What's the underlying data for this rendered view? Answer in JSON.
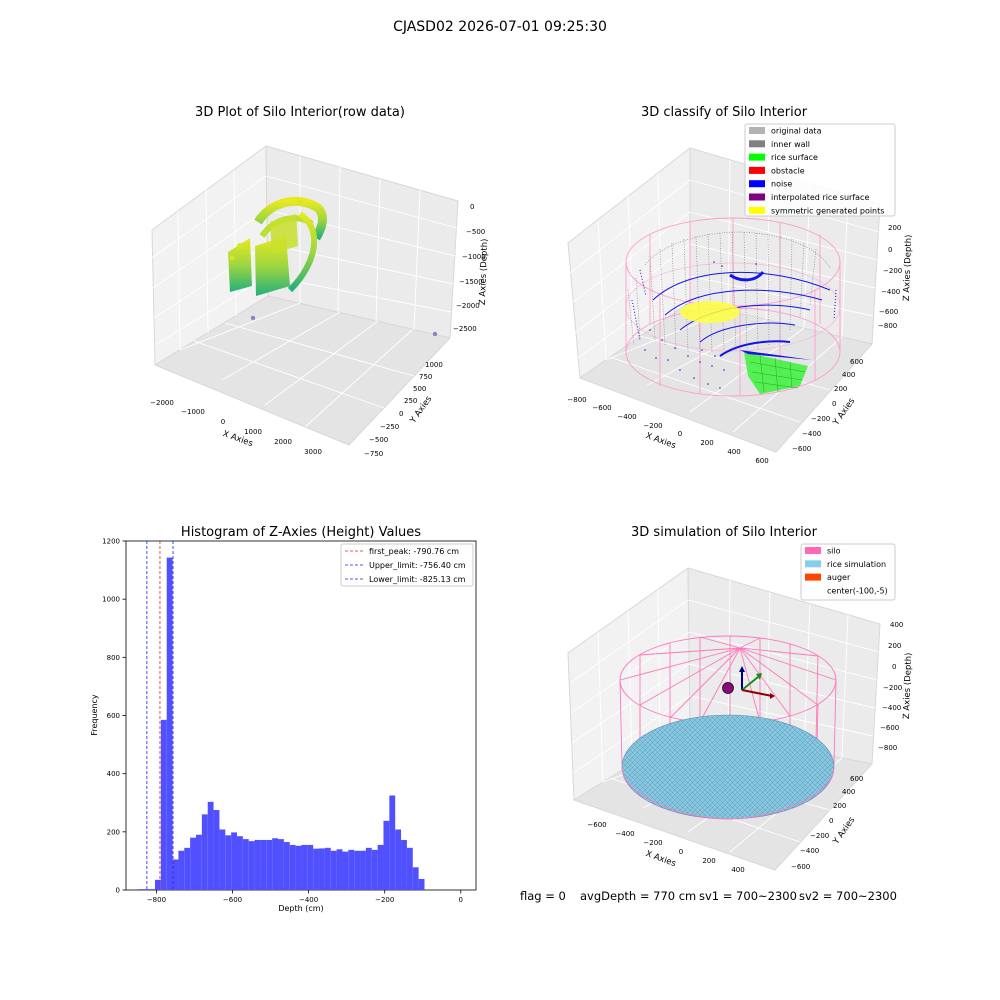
{
  "figure": {
    "suptitle": "CJASD02 2026-07-01 09:25:30"
  },
  "chart_data": [
    {
      "type": "scatter",
      "projection": "3d",
      "title": "3D Plot of Silo Interior(row data)",
      "xlabel": "X Axies",
      "ylabel": "Y Axies",
      "zlabel": "Z Axies (Depth)",
      "x_ticks": [
        "−2000",
        "−1000",
        "0",
        "1000",
        "2000",
        "3000"
      ],
      "y_ticks": [
        "−750",
        "−500",
        "−250",
        "0",
        "250",
        "500",
        "750",
        "1000"
      ],
      "z_ticks": [
        "0",
        "−500",
        "−1000",
        "−1500",
        "−2000",
        "−2500"
      ],
      "colormap": "viridis",
      "grid": true
    },
    {
      "type": "scatter",
      "projection": "3d",
      "title": "3D classify of Silo Interior",
      "xlabel": "X Axies",
      "ylabel": "Y Axies",
      "zlabel": "Z Axies (Depth)",
      "x_ticks": [
        "−800",
        "−600",
        "−400",
        "−200",
        "0",
        "200",
        "400",
        "600"
      ],
      "y_ticks": [
        "−600",
        "−400",
        "−200",
        "0",
        "200",
        "400",
        "600"
      ],
      "z_ticks": [
        "200",
        "0",
        "−200",
        "−400",
        "−600",
        "−800"
      ],
      "legend_position": "top-right",
      "legend": [
        {
          "label": "original data",
          "color": "#b3b3b3"
        },
        {
          "label": "inner wall",
          "color": "#808080"
        },
        {
          "label": "rice surface",
          "color": "#00ff00"
        },
        {
          "label": "obstacle",
          "color": "#ff0000"
        },
        {
          "label": "noise",
          "color": "#0000ff"
        },
        {
          "label": "interpolated rice surface",
          "color": "#800080"
        },
        {
          "label": "symmetric generated points",
          "color": "#ffff00"
        }
      ],
      "grid": true
    },
    {
      "type": "bar",
      "title": "Histogram of Z-Axies (Height) Values",
      "xlabel": "Depth (cm)",
      "ylabel": "Frequency",
      "xlim": [
        -880,
        40
      ],
      "ylim": [
        0,
        1200
      ],
      "x_ticks": [
        {
          "value": -800,
          "label": "−800"
        },
        {
          "value": -600,
          "label": "−600"
        },
        {
          "value": -400,
          "label": "−400"
        },
        {
          "value": -200,
          "label": "−200"
        },
        {
          "value": 0,
          "label": "0"
        }
      ],
      "y_ticks": [
        {
          "value": 0,
          "label": "0"
        },
        {
          "value": 200,
          "label": "200"
        },
        {
          "value": 400,
          "label": "400"
        },
        {
          "value": 600,
          "label": "600"
        },
        {
          "value": 800,
          "label": "800"
        },
        {
          "value": 1000,
          "label": "1000"
        },
        {
          "value": 1200,
          "label": "1200"
        }
      ],
      "bar_color": "#5050ff",
      "bin_start": -850,
      "bin_width": 15.4,
      "counts": [
        3,
        3,
        3,
        35,
        585,
        1143,
        105,
        135,
        145,
        180,
        190,
        260,
        303,
        275,
        208,
        188,
        198,
        185,
        175,
        168,
        172,
        172,
        172,
        178,
        175,
        165,
        155,
        152,
        155,
        155,
        142,
        143,
        145,
        135,
        140,
        132,
        138,
        135,
        135,
        145,
        138,
        155,
        238,
        325,
        208,
        172,
        145,
        78,
        38
      ],
      "vlines": [
        {
          "value": -790.76,
          "color": "#e02020",
          "label": "first_peak: -790.76 cm"
        },
        {
          "value": -756.4,
          "color": "#2020e0",
          "label": "Upper_limit: -756.40 cm"
        },
        {
          "value": -825.13,
          "color": "#2020e0",
          "label": "Lower_limit: -825.13 cm"
        }
      ],
      "legend_position": "top-right"
    },
    {
      "type": "scatter",
      "projection": "3d",
      "title": "3D simulation of Silo Interior",
      "xlabel": "X Axies",
      "ylabel": "Y Axies",
      "zlabel": "Z Axies (Depth)",
      "x_ticks": [
        "−600",
        "−400",
        "−200",
        "0",
        "200",
        "400"
      ],
      "y_ticks": [
        "−600",
        "−400",
        "−200",
        "0",
        "200",
        "400",
        "600"
      ],
      "z_ticks": [
        "400",
        "200",
        "0",
        "−200",
        "−400",
        "−600",
        "−800"
      ],
      "legend_position": "top-right",
      "legend": [
        {
          "label": "silo",
          "color": "#ff69b4"
        },
        {
          "label": "rice simulation",
          "color": "#87ceeb"
        },
        {
          "label": "auger",
          "color": "#ff4500"
        },
        {
          "label": "center(-100,-5)",
          "color": ""
        }
      ],
      "grid": true
    }
  ],
  "status_line": {
    "flag": "flag = 0",
    "avg_depth": "avgDepth = 770 cm",
    "sv1": "sv1 = 700~2300",
    "sv2": "sv2 = 700~2300"
  }
}
